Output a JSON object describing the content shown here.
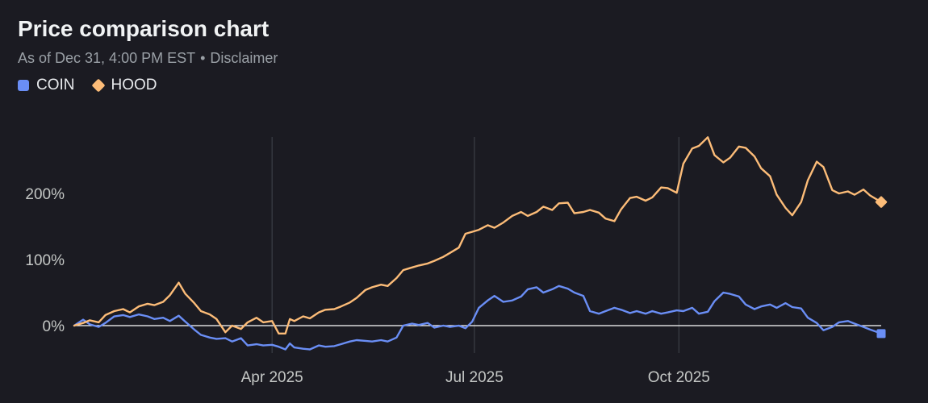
{
  "header": {
    "title": "Price comparison chart",
    "subtitle_date": "As of Dec 31, 4:00 PM EST",
    "subtitle_sep": "•",
    "subtitle_link": "Disclaimer"
  },
  "colors": {
    "background": "#1b1b22",
    "coin": "#6a8ef5",
    "hood": "#fcbc78",
    "zero_line": "#ffffff",
    "grid": "#3c3f46"
  },
  "chart_data": {
    "type": "line",
    "title": "Price comparison chart",
    "unit": "%",
    "x_domain": [
      "2025-01-02",
      "2025-12-31"
    ],
    "ylim": [
      -40,
      290
    ],
    "y_ticks": [
      {
        "value": 0,
        "label": "0%"
      },
      {
        "value": 100,
        "label": "100%"
      },
      {
        "value": 200,
        "label": "200%"
      }
    ],
    "x_ticks": [
      {
        "date": "2025-04-01",
        "label": "Apr 2025"
      },
      {
        "date": "2025-07-01",
        "label": "Jul 2025"
      },
      {
        "date": "2025-10-01",
        "label": "Oct 2025"
      }
    ],
    "legend_position": "top-left",
    "series": [
      {
        "name": "COIN",
        "marker": "square",
        "points": [
          [
            "2025-01-02",
            0
          ],
          [
            "2025-01-06",
            9
          ],
          [
            "2025-01-09",
            2
          ],
          [
            "2025-01-13",
            -2
          ],
          [
            "2025-01-16",
            4
          ],
          [
            "2025-01-20",
            14
          ],
          [
            "2025-01-24",
            16
          ],
          [
            "2025-01-27",
            13
          ],
          [
            "2025-01-31",
            17
          ],
          [
            "2025-02-04",
            14
          ],
          [
            "2025-02-07",
            10
          ],
          [
            "2025-02-11",
            12
          ],
          [
            "2025-02-14",
            7
          ],
          [
            "2025-02-18",
            15
          ],
          [
            "2025-02-21",
            6
          ],
          [
            "2025-02-25",
            -6
          ],
          [
            "2025-02-28",
            -14
          ],
          [
            "2025-03-04",
            -18
          ],
          [
            "2025-03-07",
            -20
          ],
          [
            "2025-03-11",
            -19
          ],
          [
            "2025-03-14",
            -24
          ],
          [
            "2025-03-18",
            -19
          ],
          [
            "2025-03-21",
            -30
          ],
          [
            "2025-03-25",
            -28
          ],
          [
            "2025-03-28",
            -30
          ],
          [
            "2025-04-01",
            -29
          ],
          [
            "2025-04-04",
            -32
          ],
          [
            "2025-04-07",
            -36
          ],
          [
            "2025-04-09",
            -27
          ],
          [
            "2025-04-11",
            -33
          ],
          [
            "2025-04-15",
            -35
          ],
          [
            "2025-04-18",
            -36
          ],
          [
            "2025-04-22",
            -30
          ],
          [
            "2025-04-25",
            -32
          ],
          [
            "2025-04-29",
            -31
          ],
          [
            "2025-05-02",
            -28
          ],
          [
            "2025-05-06",
            -24
          ],
          [
            "2025-05-09",
            -22
          ],
          [
            "2025-05-13",
            -23
          ],
          [
            "2025-05-16",
            -24
          ],
          [
            "2025-05-20",
            -22
          ],
          [
            "2025-05-23",
            -24
          ],
          [
            "2025-05-27",
            -18
          ],
          [
            "2025-05-30",
            0
          ],
          [
            "2025-06-03",
            3
          ],
          [
            "2025-06-06",
            1
          ],
          [
            "2025-06-10",
            4
          ],
          [
            "2025-06-13",
            -3
          ],
          [
            "2025-06-17",
            0
          ],
          [
            "2025-06-20",
            -2
          ],
          [
            "2025-06-24",
            0
          ],
          [
            "2025-06-27",
            -4
          ],
          [
            "2025-06-30",
            6
          ],
          [
            "2025-07-03",
            27
          ],
          [
            "2025-07-07",
            38
          ],
          [
            "2025-07-10",
            45
          ],
          [
            "2025-07-14",
            36
          ],
          [
            "2025-07-18",
            38
          ],
          [
            "2025-07-22",
            44
          ],
          [
            "2025-07-25",
            55
          ],
          [
            "2025-07-29",
            58
          ],
          [
            "2025-08-01",
            50
          ],
          [
            "2025-08-05",
            55
          ],
          [
            "2025-08-08",
            60
          ],
          [
            "2025-08-12",
            56
          ],
          [
            "2025-08-15",
            50
          ],
          [
            "2025-08-19",
            45
          ],
          [
            "2025-08-22",
            22
          ],
          [
            "2025-08-26",
            18
          ],
          [
            "2025-08-29",
            22
          ],
          [
            "2025-09-02",
            27
          ],
          [
            "2025-09-05",
            24
          ],
          [
            "2025-09-09",
            19
          ],
          [
            "2025-09-12",
            22
          ],
          [
            "2025-09-16",
            18
          ],
          [
            "2025-09-19",
            22
          ],
          [
            "2025-09-23",
            18
          ],
          [
            "2025-09-26",
            20
          ],
          [
            "2025-09-30",
            23
          ],
          [
            "2025-10-03",
            22
          ],
          [
            "2025-10-07",
            27
          ],
          [
            "2025-10-10",
            18
          ],
          [
            "2025-10-14",
            21
          ],
          [
            "2025-10-17",
            37
          ],
          [
            "2025-10-21",
            50
          ],
          [
            "2025-10-24",
            48
          ],
          [
            "2025-10-28",
            44
          ],
          [
            "2025-10-31",
            32
          ],
          [
            "2025-11-04",
            25
          ],
          [
            "2025-11-07",
            29
          ],
          [
            "2025-11-11",
            32
          ],
          [
            "2025-11-14",
            27
          ],
          [
            "2025-11-18",
            34
          ],
          [
            "2025-11-21",
            28
          ],
          [
            "2025-11-25",
            26
          ],
          [
            "2025-11-28",
            12
          ],
          [
            "2025-12-02",
            4
          ],
          [
            "2025-12-05",
            -7
          ],
          [
            "2025-12-09",
            -2
          ],
          [
            "2025-12-12",
            5
          ],
          [
            "2025-12-16",
            7
          ],
          [
            "2025-12-19",
            3
          ],
          [
            "2025-12-23",
            -2
          ],
          [
            "2025-12-26",
            -6
          ],
          [
            "2025-12-31",
            -12
          ]
        ]
      },
      {
        "name": "HOOD",
        "marker": "diamond",
        "points": [
          [
            "2025-01-02",
            0
          ],
          [
            "2025-01-06",
            4
          ],
          [
            "2025-01-09",
            8
          ],
          [
            "2025-01-13",
            5
          ],
          [
            "2025-01-16",
            16
          ],
          [
            "2025-01-20",
            22
          ],
          [
            "2025-01-24",
            25
          ],
          [
            "2025-01-27",
            20
          ],
          [
            "2025-01-31",
            29
          ],
          [
            "2025-02-04",
            33
          ],
          [
            "2025-02-07",
            31
          ],
          [
            "2025-02-11",
            36
          ],
          [
            "2025-02-14",
            46
          ],
          [
            "2025-02-18",
            65
          ],
          [
            "2025-02-21",
            48
          ],
          [
            "2025-02-25",
            34
          ],
          [
            "2025-02-28",
            22
          ],
          [
            "2025-03-04",
            17
          ],
          [
            "2025-03-07",
            10
          ],
          [
            "2025-03-11",
            -10
          ],
          [
            "2025-03-14",
            0
          ],
          [
            "2025-03-18",
            -5
          ],
          [
            "2025-03-21",
            5
          ],
          [
            "2025-03-25",
            12
          ],
          [
            "2025-03-28",
            5
          ],
          [
            "2025-04-01",
            7
          ],
          [
            "2025-04-04",
            -12
          ],
          [
            "2025-04-07",
            -12
          ],
          [
            "2025-04-09",
            10
          ],
          [
            "2025-04-11",
            7
          ],
          [
            "2025-04-15",
            14
          ],
          [
            "2025-04-18",
            11
          ],
          [
            "2025-04-22",
            20
          ],
          [
            "2025-04-25",
            24
          ],
          [
            "2025-04-29",
            25
          ],
          [
            "2025-05-02",
            29
          ],
          [
            "2025-05-06",
            35
          ],
          [
            "2025-05-09",
            42
          ],
          [
            "2025-05-13",
            54
          ],
          [
            "2025-05-16",
            58
          ],
          [
            "2025-05-20",
            62
          ],
          [
            "2025-05-23",
            60
          ],
          [
            "2025-05-27",
            72
          ],
          [
            "2025-05-30",
            84
          ],
          [
            "2025-06-03",
            88
          ],
          [
            "2025-06-06",
            91
          ],
          [
            "2025-06-10",
            94
          ],
          [
            "2025-06-13",
            98
          ],
          [
            "2025-06-17",
            104
          ],
          [
            "2025-06-20",
            110
          ],
          [
            "2025-06-24",
            118
          ],
          [
            "2025-06-27",
            139
          ],
          [
            "2025-06-30",
            142
          ],
          [
            "2025-07-03",
            145
          ],
          [
            "2025-07-07",
            152
          ],
          [
            "2025-07-10",
            148
          ],
          [
            "2025-07-14",
            156
          ],
          [
            "2025-07-18",
            166
          ],
          [
            "2025-07-22",
            172
          ],
          [
            "2025-07-25",
            166
          ],
          [
            "2025-07-29",
            172
          ],
          [
            "2025-08-01",
            180
          ],
          [
            "2025-08-05",
            175
          ],
          [
            "2025-08-08",
            185
          ],
          [
            "2025-08-12",
            186
          ],
          [
            "2025-08-15",
            170
          ],
          [
            "2025-08-19",
            172
          ],
          [
            "2025-08-22",
            175
          ],
          [
            "2025-08-26",
            171
          ],
          [
            "2025-08-29",
            162
          ],
          [
            "2025-09-02",
            158
          ],
          [
            "2025-09-05",
            176
          ],
          [
            "2025-09-09",
            193
          ],
          [
            "2025-09-12",
            195
          ],
          [
            "2025-09-16",
            189
          ],
          [
            "2025-09-19",
            194
          ],
          [
            "2025-09-23",
            209
          ],
          [
            "2025-09-26",
            208
          ],
          [
            "2025-09-30",
            201
          ],
          [
            "2025-10-03",
            245
          ],
          [
            "2025-10-07",
            268
          ],
          [
            "2025-10-10",
            272
          ],
          [
            "2025-10-14",
            285
          ],
          [
            "2025-10-17",
            258
          ],
          [
            "2025-10-21",
            247
          ],
          [
            "2025-10-24",
            254
          ],
          [
            "2025-10-28",
            271
          ],
          [
            "2025-10-31",
            269
          ],
          [
            "2025-11-04",
            256
          ],
          [
            "2025-11-07",
            238
          ],
          [
            "2025-11-11",
            226
          ],
          [
            "2025-11-14",
            198
          ],
          [
            "2025-11-18",
            178
          ],
          [
            "2025-11-21",
            167
          ],
          [
            "2025-11-25",
            187
          ],
          [
            "2025-11-28",
            220
          ],
          [
            "2025-12-02",
            248
          ],
          [
            "2025-12-05",
            240
          ],
          [
            "2025-12-09",
            205
          ],
          [
            "2025-12-12",
            200
          ],
          [
            "2025-12-16",
            203
          ],
          [
            "2025-12-19",
            198
          ],
          [
            "2025-12-23",
            206
          ],
          [
            "2025-12-26",
            197
          ],
          [
            "2025-12-31",
            187
          ]
        ]
      }
    ]
  }
}
